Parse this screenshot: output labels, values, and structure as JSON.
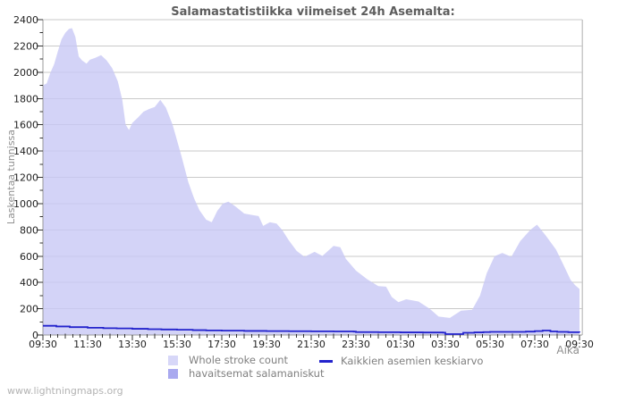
{
  "title": "Salamastatistiikka viimeiset 24h Asemalta:",
  "watermark": "www.lightningmaps.org",
  "axes": {
    "ylabel": "Laskentaa tunnissa",
    "xlabel": "Aika"
  },
  "legend": [
    {
      "label": "Whole stroke count",
      "color": "#d7d7f8",
      "kind": "area"
    },
    {
      "label": "havaitsemat salamaniskut",
      "color": "#a9a9ef",
      "kind": "area"
    },
    {
      "label": "Kaikkien asemien keskiarvo",
      "color": "#2323cc",
      "kind": "line"
    }
  ],
  "chart_data": {
    "type": "area",
    "title": "Salamastatistiikka viimeiset 24h Asemalta:",
    "xlabel": "Aika",
    "ylabel": "Laskentaa tunnissa",
    "ylim": [
      0,
      2400
    ],
    "yticks": [
      0,
      200,
      400,
      600,
      800,
      1000,
      1200,
      1400,
      1600,
      1800,
      2000,
      2200,
      2400
    ],
    "ytick_minor_step": 100,
    "x_span_hours": 24,
    "x_tick_labels": [
      "09:30",
      "11:30",
      "13:30",
      "15:30",
      "17:30",
      "19:30",
      "21:30",
      "23:30",
      "01:30",
      "03:30",
      "05:30",
      "07:30",
      "09:30"
    ],
    "x_minor_tick_minutes": 20,
    "grid": "horizontal",
    "legend_position": "bottom",
    "colors": {
      "area_fill": "rgba(200,200,245,0.8)",
      "grid": "#c9c9c9",
      "axis": "#999999",
      "avg_line": "#2323cc",
      "tick": "#333333",
      "tick_text": "#1f1f1f"
    },
    "series": [
      {
        "name": "Whole stroke count",
        "type": "area",
        "points_hours_value": [
          [
            0,
            1900
          ],
          [
            0.17,
            1915
          ],
          [
            0.33,
            1995
          ],
          [
            0.5,
            2060
          ],
          [
            0.67,
            2160
          ],
          [
            0.83,
            2250
          ],
          [
            1.0,
            2300
          ],
          [
            1.17,
            2330
          ],
          [
            1.3,
            2335
          ],
          [
            1.45,
            2270
          ],
          [
            1.6,
            2120
          ],
          [
            1.75,
            2090
          ],
          [
            1.95,
            2065
          ],
          [
            2.1,
            2095
          ],
          [
            2.35,
            2110
          ],
          [
            2.6,
            2130
          ],
          [
            2.85,
            2090
          ],
          [
            3.1,
            2030
          ],
          [
            3.35,
            1930
          ],
          [
            3.55,
            1790
          ],
          [
            3.7,
            1600
          ],
          [
            3.85,
            1560
          ],
          [
            4.0,
            1615
          ],
          [
            4.25,
            1655
          ],
          [
            4.5,
            1700
          ],
          [
            4.75,
            1720
          ],
          [
            5.0,
            1735
          ],
          [
            5.25,
            1790
          ],
          [
            5.5,
            1730
          ],
          [
            5.8,
            1600
          ],
          [
            6.2,
            1360
          ],
          [
            6.5,
            1165
          ],
          [
            6.75,
            1045
          ],
          [
            7.0,
            950
          ],
          [
            7.3,
            878
          ],
          [
            7.55,
            858
          ],
          [
            7.8,
            945
          ],
          [
            8.05,
            1000
          ],
          [
            8.3,
            1015
          ],
          [
            8.6,
            980
          ],
          [
            9.0,
            925
          ],
          [
            9.4,
            912
          ],
          [
            9.65,
            905
          ],
          [
            9.85,
            830
          ],
          [
            10.15,
            858
          ],
          [
            10.45,
            848
          ],
          [
            10.7,
            800
          ],
          [
            11.0,
            720
          ],
          [
            11.35,
            640
          ],
          [
            11.7,
            595
          ],
          [
            12.15,
            633
          ],
          [
            12.5,
            602
          ],
          [
            13.0,
            678
          ],
          [
            13.3,
            668
          ],
          [
            13.55,
            580
          ],
          [
            14.0,
            490
          ],
          [
            14.5,
            425
          ],
          [
            15.0,
            372
          ],
          [
            15.35,
            368
          ],
          [
            15.6,
            290
          ],
          [
            15.9,
            250
          ],
          [
            16.25,
            272
          ],
          [
            16.8,
            255
          ],
          [
            17.3,
            200
          ],
          [
            17.7,
            140
          ],
          [
            18.2,
            130
          ],
          [
            18.7,
            185
          ],
          [
            19.2,
            192
          ],
          [
            19.55,
            300
          ],
          [
            19.85,
            470
          ],
          [
            20.2,
            600
          ],
          [
            20.55,
            625
          ],
          [
            20.95,
            595
          ],
          [
            21.35,
            715
          ],
          [
            21.8,
            800
          ],
          [
            22.1,
            840
          ],
          [
            22.5,
            755
          ],
          [
            22.95,
            650
          ],
          [
            23.35,
            510
          ],
          [
            23.6,
            420
          ],
          [
            23.8,
            380
          ],
          [
            24,
            350
          ]
        ]
      },
      {
        "name": "havaitsemat salamaniskut",
        "type": "area",
        "points_hours_value": []
      },
      {
        "name": "Kaikkien asemien keskiarvo",
        "type": "step-line",
        "points_hours_value": [
          [
            0,
            70
          ],
          [
            0.6,
            65
          ],
          [
            1.2,
            60
          ],
          [
            2,
            55
          ],
          [
            2.7,
            52
          ],
          [
            3.3,
            50
          ],
          [
            4,
            47
          ],
          [
            4.7,
            44
          ],
          [
            5.3,
            42
          ],
          [
            6,
            40
          ],
          [
            6.7,
            37
          ],
          [
            7.3,
            35
          ],
          [
            8,
            33
          ],
          [
            9,
            31
          ],
          [
            10,
            30
          ],
          [
            11,
            29
          ],
          [
            12,
            28
          ],
          [
            13,
            27
          ],
          [
            13.9,
            26
          ],
          [
            14,
            22
          ],
          [
            15,
            21
          ],
          [
            16,
            20
          ],
          [
            17,
            19
          ],
          [
            17.9,
            18
          ],
          [
            18,
            7
          ],
          [
            18.6,
            7
          ],
          [
            18.8,
            17
          ],
          [
            19.3,
            20
          ],
          [
            19.7,
            22
          ],
          [
            20,
            24
          ],
          [
            21,
            24
          ],
          [
            21.6,
            26
          ],
          [
            22,
            30
          ],
          [
            22.35,
            34
          ],
          [
            22.7,
            27
          ],
          [
            23,
            24
          ],
          [
            23.5,
            21
          ],
          [
            24,
            19
          ]
        ]
      }
    ]
  }
}
